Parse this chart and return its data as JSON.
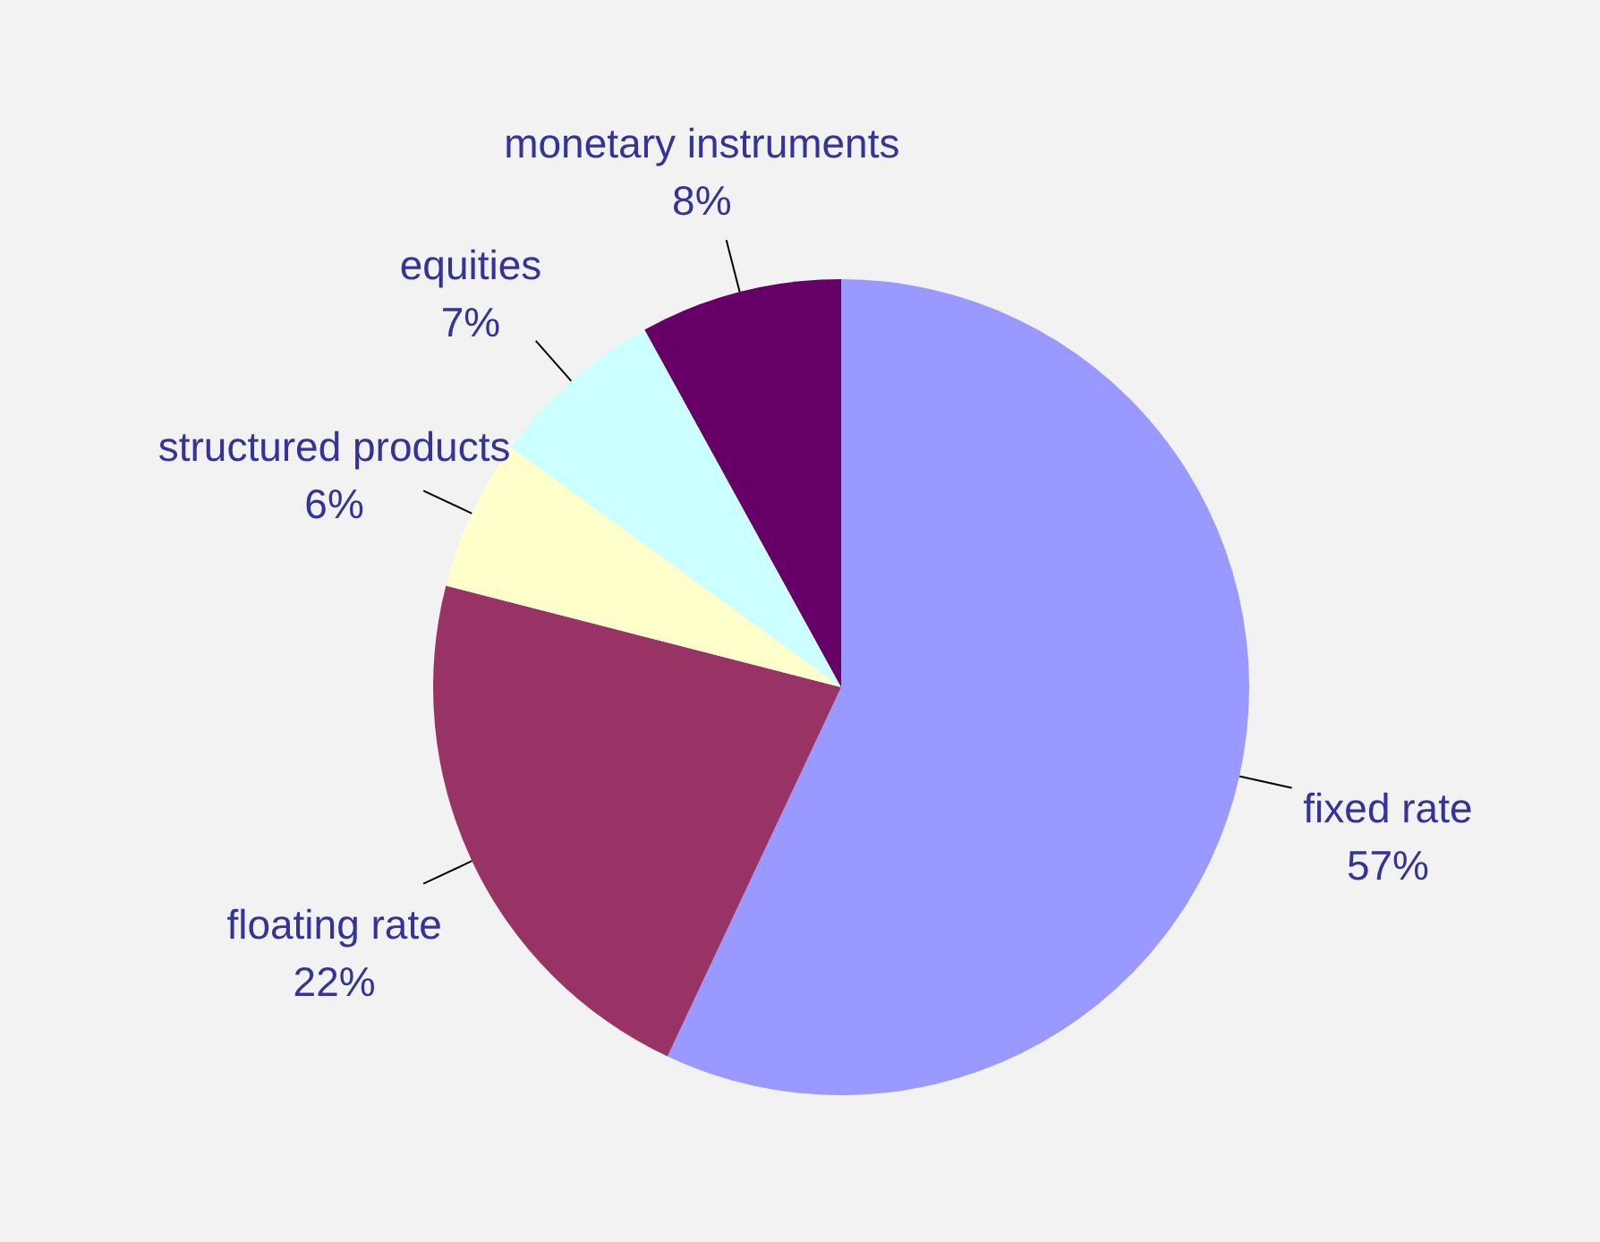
{
  "chart_data": {
    "type": "pie",
    "categories": [
      "fixed rate",
      "floating rate",
      "structured products",
      "equities",
      "monetary instruments"
    ],
    "values": [
      57,
      22,
      6,
      7,
      8
    ],
    "value_labels": [
      "57%",
      "22%",
      "6%",
      "7%",
      "8%"
    ],
    "colors": [
      "#9999ff",
      "#993366",
      "#ffffcc",
      "#ccffff",
      "#660066"
    ]
  }
}
